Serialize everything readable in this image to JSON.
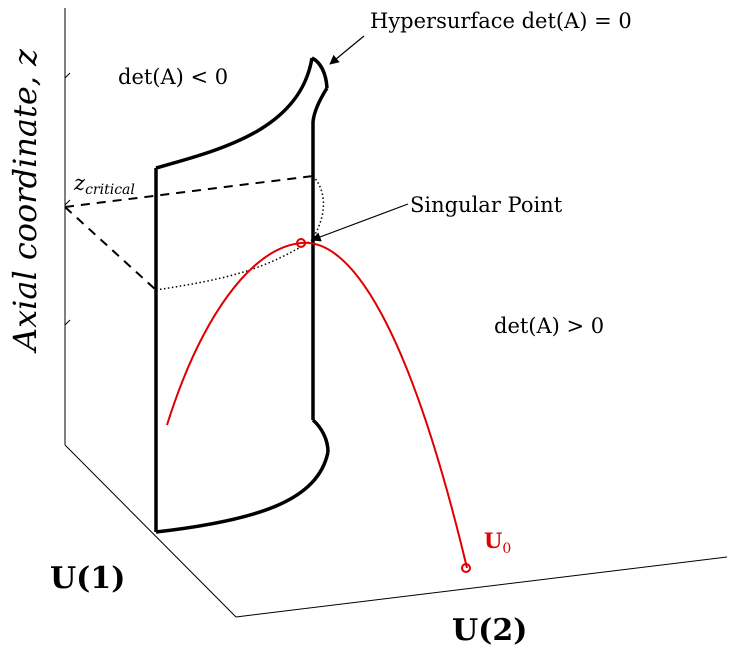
{
  "labels": {
    "z_axis": "Axial coordinate, z",
    "u1_axis": "U(1)",
    "u2_axis": "U(2)",
    "hypersurface": "Hypersurface det(A) = 0",
    "det_neg": "det(A) < 0",
    "det_pos": "det(A) > 0",
    "z_critical": "z",
    "z_critical_sub": "critical",
    "singular_point": "Singular Point",
    "u0": "U",
    "u0_sub": "0"
  },
  "colors": {
    "ink": "#000000",
    "trajectory": "#e00000"
  }
}
